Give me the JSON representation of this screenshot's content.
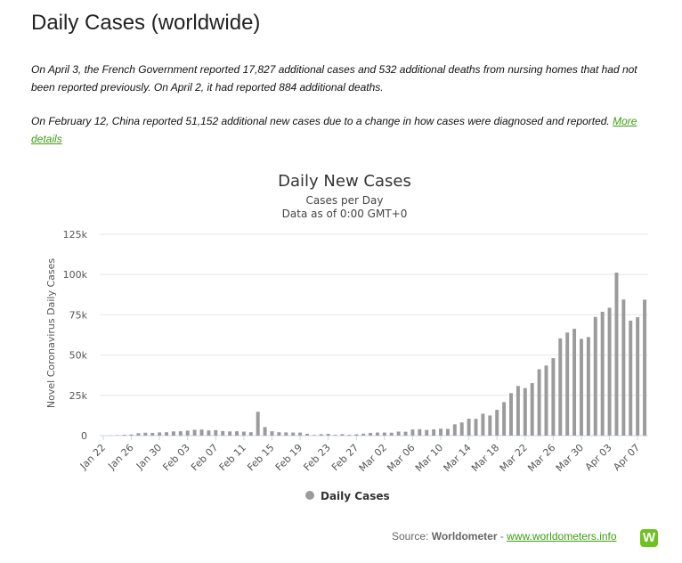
{
  "page": {
    "title": "Daily Cases (worldwide)",
    "note1": "On April 3, the French Government reported 17,827 additional cases and 532 additional deaths from nursing homes that had not been reported previously. On April 2, it had reported 884 additional deaths.",
    "note2_text": "On February 12, China reported 51,152 additional new cases due to a change in how cases were diagnosed and reported. ",
    "note2_link": "More details"
  },
  "footer": {
    "prefix": "Source: ",
    "source_name": "Worldometer",
    "separator": " - ",
    "link": "www.worldometers.info",
    "logo_letter": "W"
  },
  "colors": {
    "bar": "#9b9b9b",
    "link": "#3c9e12",
    "logo": "#6dc21f",
    "grid": "#e6e6e6"
  },
  "chart_data": {
    "type": "bar",
    "title": "Daily New Cases",
    "subtitle": "Cases per Day",
    "subtitle2": "Data as of 0:00 GMT+0",
    "ylabel": "Novel Coronavirus Daily Cases",
    "xlabel": "",
    "ylim": [
      0,
      125000
    ],
    "yticks": [
      0,
      25000,
      50000,
      75000,
      100000,
      125000
    ],
    "ytick_labels": [
      "0",
      "25k",
      "50k",
      "75k",
      "100k",
      "125k"
    ],
    "grid": true,
    "legend_position": "bottom-center",
    "x_tick_labels": [
      "Jan 22",
      "Jan 26",
      "Jan 30",
      "Feb 03",
      "Feb 07",
      "Feb 11",
      "Feb 15",
      "Feb 19",
      "Feb 23",
      "Feb 27",
      "Mar 02",
      "Mar 06",
      "Mar 10",
      "Mar 14",
      "Mar 18",
      "Mar 22",
      "Mar 26",
      "Mar 30",
      "Apr 03",
      "Apr 07"
    ],
    "x_tick_every": 4,
    "series": [
      {
        "name": "Daily Cases",
        "color": "#9b9b9b",
        "values": [
          0,
          100,
          250,
          500,
          700,
          1500,
          1800,
          1700,
          2000,
          2100,
          2600,
          2700,
          3100,
          3600,
          3800,
          3200,
          3400,
          2800,
          2600,
          2700,
          2500,
          2100,
          14800,
          5300,
          2700,
          2100,
          2000,
          1900,
          1900,
          1100,
          400,
          900,
          1100,
          500,
          900,
          500,
          800,
          1200,
          1700,
          1900,
          1900,
          1800,
          2500,
          2400,
          3800,
          4000,
          3500,
          3900,
          4300,
          4200,
          7000,
          8200,
          10500,
          10400,
          13600,
          12500,
          16000,
          20800,
          26400,
          30800,
          29500,
          32600,
          41200,
          43500,
          48100,
          60400,
          64000,
          66300,
          60100,
          61200,
          73700,
          76900,
          79400,
          101200,
          84500,
          71400,
          73500,
          84400
        ]
      }
    ]
  }
}
